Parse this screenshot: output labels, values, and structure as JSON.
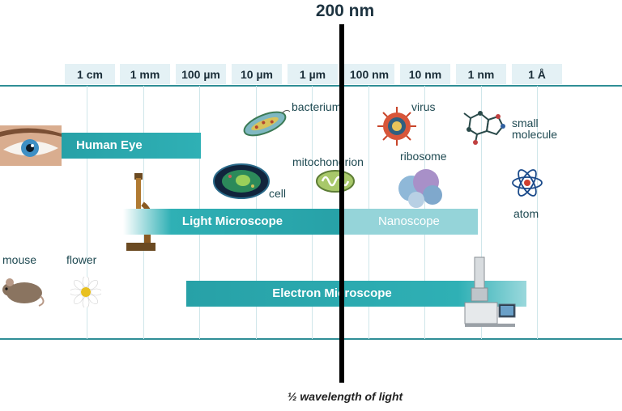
{
  "title": "200 nm",
  "scale_ticks": [
    "1 cm",
    "1 mm",
    "100 µm",
    "10 µm",
    "1 µm",
    "100 nm",
    "10 nm",
    "1 nm",
    "1 Å"
  ],
  "bars": {
    "human_eye": "Human Eye",
    "light_microscope": "Light Microscope",
    "nanoscope": "Nanoscope",
    "electron_microscope": "Electron Microscope"
  },
  "objects": {
    "mouse": "mouse",
    "flower": "flower",
    "bacterium": "bacterium",
    "cell": "cell",
    "mitochondrion": "mitochondrion",
    "virus": "virus",
    "ribosome": "ribosome",
    "small_molecule_line1": "small",
    "small_molecule_line2": "molecule",
    "atom": "atom"
  },
  "footer": "½ wavelength of light",
  "colors": {
    "accent": "#2f8e96",
    "bar_dark": "#27a1a7",
    "bar_light": "#95d4d9",
    "tick_bg": "#e4f1f5",
    "divider": "#000000"
  },
  "icons": [
    "eye-icon",
    "microscope-icon",
    "mouse-icon",
    "flower-icon",
    "bacterium-icon",
    "cell-icon",
    "mitochondrion-icon",
    "virus-icon",
    "ribosome-icon",
    "molecule-icon",
    "atom-icon",
    "electron-microscope-icon"
  ]
}
